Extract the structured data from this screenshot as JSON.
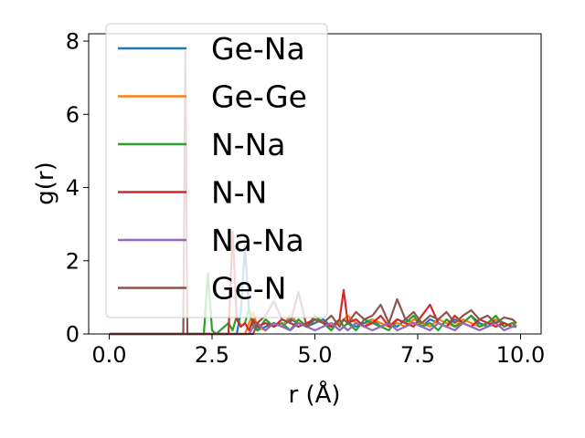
{
  "chart_data": {
    "type": "line",
    "title": "",
    "xlabel": "r (Å)",
    "ylabel": "g(r)",
    "xlim": [
      -0.5,
      10.5
    ],
    "ylim": [
      0,
      8.2
    ],
    "xticks": [
      0.0,
      2.5,
      5.0,
      7.5,
      10.0
    ],
    "xtick_labels": [
      "0.0",
      "2.5",
      "5.0",
      "7.5",
      "10.0"
    ],
    "yticks": [
      0,
      2,
      4,
      6,
      8
    ],
    "ytick_labels": [
      "0",
      "2",
      "4",
      "6",
      "8"
    ],
    "grid": false,
    "legend_position": "top-left",
    "x": [
      0.0,
      0.5,
      1.0,
      1.5,
      1.8,
      1.85,
      1.9,
      2.0,
      2.3,
      2.4,
      2.5,
      2.6,
      2.9,
      3.0,
      3.1,
      3.2,
      3.3,
      3.4,
      3.5,
      3.6,
      3.8,
      4.0,
      4.2,
      4.4,
      4.6,
      4.8,
      5.0,
      5.2,
      5.4,
      5.6,
      5.7,
      5.8,
      6.0,
      6.2,
      6.4,
      6.6,
      6.8,
      7.0,
      7.2,
      7.4,
      7.6,
      7.8,
      8.0,
      8.2,
      8.4,
      8.6,
      8.8,
      9.0,
      9.2,
      9.4,
      9.6,
      9.8,
      9.9
    ],
    "series": [
      {
        "name": "Ge-Na",
        "color": "#1f77b4",
        "values": [
          0,
          0,
          0,
          0,
          0,
          0,
          0,
          0,
          0,
          0,
          0,
          0,
          0,
          0,
          0,
          0.6,
          2.4,
          0.6,
          0.3,
          0.1,
          0.2,
          0.3,
          0.2,
          0.4,
          0.3,
          0.2,
          0.3,
          0.4,
          0.2,
          0.3,
          0.4,
          0.3,
          0.2,
          0.3,
          0.4,
          0.2,
          0.3,
          0.2,
          0.4,
          0.3,
          0.2,
          0.4,
          0.3,
          0.2,
          0.4,
          0.3,
          0.5,
          0.3,
          0.2,
          0.4,
          0.3,
          0.2,
          0.2
        ]
      },
      {
        "name": "Ge-Ge",
        "color": "#ff7f0e",
        "values": [
          0,
          0,
          0,
          0,
          0,
          0,
          0,
          0,
          0,
          0,
          0,
          0,
          0,
          0,
          0,
          0,
          0,
          0.3,
          0.6,
          0.2,
          0.1,
          0.3,
          0.2,
          0.5,
          0.3,
          0.2,
          0.4,
          0.3,
          0.2,
          0.3,
          0.4,
          0.5,
          0.3,
          0.2,
          0.4,
          0.3,
          0.2,
          0.3,
          0.2,
          0.4,
          0.3,
          0.2,
          0.4,
          0.3,
          0.2,
          0.4,
          0.3,
          0.2,
          0.3,
          0.4,
          0.2,
          0.3,
          0.3
        ]
      },
      {
        "name": "N-Na",
        "color": "#2ca02c",
        "values": [
          0,
          0,
          0,
          0,
          0,
          0,
          0,
          0,
          0,
          1.65,
          0.1,
          0,
          0.3,
          0.1,
          0.5,
          0.2,
          0.3,
          0.7,
          0.2,
          0.1,
          0.4,
          0.2,
          0.3,
          0.1,
          0.4,
          0.2,
          0.5,
          0.3,
          0.1,
          0.4,
          0.2,
          0.3,
          0.1,
          0.4,
          0.3,
          0.2,
          0.1,
          0.4,
          0.3,
          0.5,
          0.2,
          0.3,
          0.1,
          0.4,
          0.2,
          0.3,
          0.5,
          0.2,
          0.3,
          0.5,
          0.2,
          0.3,
          0.2
        ]
      },
      {
        "name": "N-N",
        "color": "#d62728",
        "values": [
          0,
          0,
          0,
          0,
          0,
          0,
          0,
          0,
          0,
          0,
          0,
          0,
          0,
          2.8,
          0.4,
          0.2,
          0.3,
          0.1,
          0.4,
          0.2,
          0.3,
          0.2,
          0.4,
          0.3,
          0.2,
          0.3,
          0.4,
          0.3,
          0.2,
          0.4,
          1.2,
          0.3,
          0.4,
          0.2,
          0.3,
          0.5,
          0.2,
          0.4,
          0.3,
          0.2,
          0.5,
          0.8,
          0.3,
          0.2,
          0.5,
          0.3,
          0.2,
          0.4,
          0.3,
          0.2,
          0.3,
          0.2,
          0.2
        ]
      },
      {
        "name": "Na-Na",
        "color": "#9467bd",
        "values": [
          0,
          0,
          0,
          0,
          0,
          0,
          0,
          0,
          0,
          0,
          0,
          0,
          0,
          0,
          0,
          0,
          0,
          0,
          0.2,
          0.3,
          0.1,
          0.3,
          0.2,
          0.1,
          0.3,
          0.2,
          0.1,
          0.2,
          0.3,
          0.1,
          0.2,
          0.1,
          0.3,
          0.2,
          0.1,
          0.2,
          0.3,
          0.1,
          0.2,
          0.3,
          0.2,
          0.1,
          0.3,
          0.2,
          0.1,
          0.3,
          0.2,
          0.1,
          0.2,
          0.3,
          0.1,
          0.2,
          0.2
        ]
      },
      {
        "name": "Ge-N",
        "color": "#8c564b",
        "values": [
          0,
          0,
          0,
          0,
          0,
          7.7,
          0,
          0,
          0,
          0,
          0,
          0,
          0,
          0,
          0,
          0,
          0,
          0,
          0,
          0.3,
          0.5,
          0.9,
          0.4,
          0.3,
          1.15,
          0.2,
          0.4,
          0.3,
          0.5,
          0.2,
          0.4,
          0.3,
          0.6,
          0.4,
          0.5,
          0.8,
          0.3,
          0.95,
          0.4,
          0.6,
          0.3,
          0.5,
          0.4,
          0.6,
          0.3,
          0.5,
          0.65,
          0.4,
          0.5,
          0.3,
          0.45,
          0.4,
          0.3
        ]
      }
    ]
  }
}
